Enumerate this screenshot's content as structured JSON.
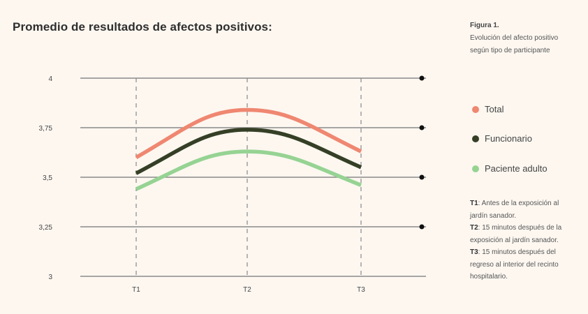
{
  "chart_data": {
    "type": "line",
    "title": "Promedio de resultados de afectos positivos:",
    "x": [
      "T1",
      "T2",
      "T3"
    ],
    "yticks": [
      "3",
      "3,25",
      "3,5",
      "3,75",
      "4"
    ],
    "ytick_values": [
      3,
      3.25,
      3.5,
      3.75,
      4
    ],
    "ylim": [
      3,
      4
    ],
    "grid": true,
    "series": [
      {
        "name": "Total",
        "color": "#ef8771",
        "values": [
          3.6,
          3.84,
          3.63
        ]
      },
      {
        "name": "Funcionario",
        "color": "#353f26",
        "values": [
          3.52,
          3.74,
          3.55
        ]
      },
      {
        "name": "Paciente adulto",
        "color": "#96d393",
        "values": [
          3.44,
          3.63,
          3.46
        ]
      }
    ],
    "legend_placement": "right"
  },
  "figure": {
    "label": "Figura 1.",
    "caption": "Evolución del afecto positivo según tipo de participante"
  },
  "notes": [
    {
      "key": "T1",
      "text": ": Antes de la exposición al jardín sanador."
    },
    {
      "key": "T2",
      "text": ": 15 minutos después de la exposición al jardín sanador."
    },
    {
      "key": "T3",
      "text": ": 15 minutos después del regreso al interior del recinto hospitalario."
    }
  ]
}
